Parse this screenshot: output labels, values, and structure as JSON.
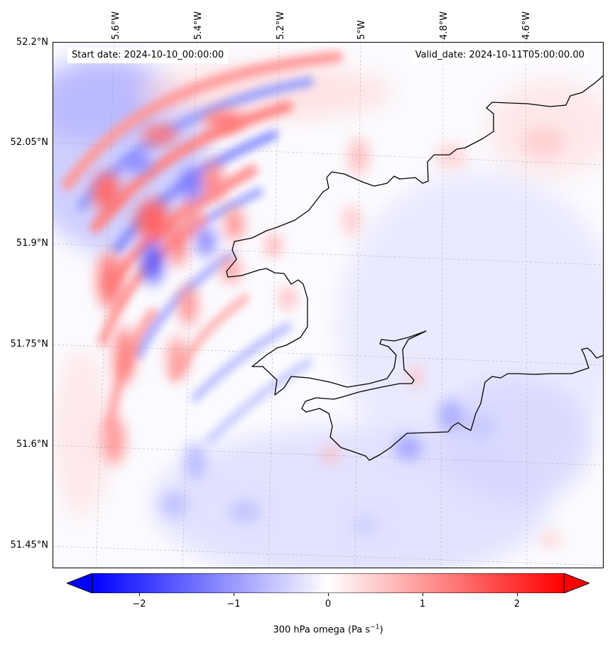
{
  "header": {
    "start_date": "Start date: 2024-10-10_00:00:00",
    "valid_date": "Valid_date: 2024-10-11T05:00:00.00"
  },
  "axes": {
    "lon_ticks": [
      "5.6°W",
      "5.4°W",
      "5.2°W",
      "5°W",
      "4.8°W",
      "4.6°W"
    ],
    "lat_ticks": [
      "52.2°N",
      "52.05°N",
      "51.9°N",
      "51.75°N",
      "51.6°N",
      "51.45°N"
    ]
  },
  "colorbar": {
    "label": "300 hPa omega (Pa s",
    "label_sup": "−1",
    "label_close": ")",
    "ticks": [
      "−2",
      "−1",
      "0",
      "1",
      "2"
    ],
    "range": [
      -2.5,
      2.5
    ],
    "colormap": "bwr",
    "neg_color": "#0000ff",
    "mid_color": "#ffffff",
    "pos_color": "#ff0000"
  },
  "map": {
    "extent_lon": [
      -5.75,
      -4.45
    ],
    "extent_lat": [
      51.42,
      52.2
    ],
    "coastline_color": "#000000",
    "gridline_style": "dashed-gray"
  }
}
